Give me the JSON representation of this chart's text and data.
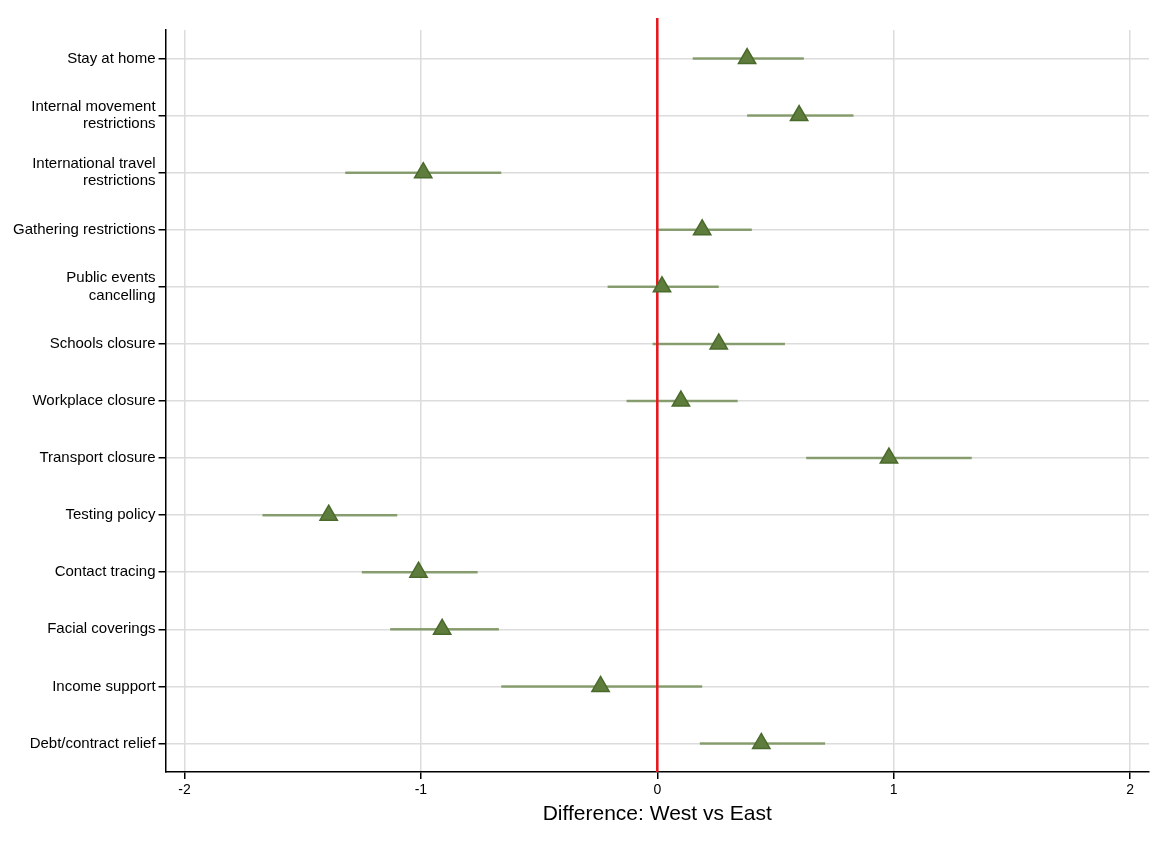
{
  "chart_data": {
    "type": "scatter",
    "orientation": "horizontal",
    "xlabel": "Difference: West vs East",
    "categories": [
      "Stay at home",
      "Internal movement restrictions",
      "International travel restrictions",
      "Gathering restrictions",
      "Public events cancelling",
      "Schools closure",
      "Workplace closure",
      "Transport closure",
      "Testing policy",
      "Contact tracing",
      "Facial coverings",
      "Income support",
      "Debt/contract relief"
    ],
    "values": [
      0.38,
      0.6,
      -0.99,
      0.19,
      0.02,
      0.26,
      0.1,
      0.98,
      -1.39,
      -1.01,
      -0.91,
      -0.24,
      0.44
    ],
    "errors": [
      [
        0.15,
        0.62
      ],
      [
        0.38,
        0.83
      ],
      [
        -1.32,
        -0.66
      ],
      [
        0.0,
        0.4
      ],
      [
        -0.21,
        0.26
      ],
      [
        -0.02,
        0.54
      ],
      [
        -0.13,
        0.34
      ],
      [
        0.63,
        1.33
      ],
      [
        -1.67,
        -1.1
      ],
      [
        -1.25,
        -0.76
      ],
      [
        -1.13,
        -0.67
      ],
      [
        -0.66,
        0.19
      ],
      [
        0.18,
        0.71
      ]
    ],
    "color": "#5e7d3c",
    "xlim": [
      -2.08,
      2.08
    ],
    "xticks": [
      -2,
      -1,
      0,
      1,
      2
    ],
    "ref_lines": [
      {
        "axis": "x",
        "value": 0,
        "color": "#e8151b",
        "line_style": "solid"
      }
    ],
    "grid": true,
    "marker": "triangle",
    "legend": false
  }
}
